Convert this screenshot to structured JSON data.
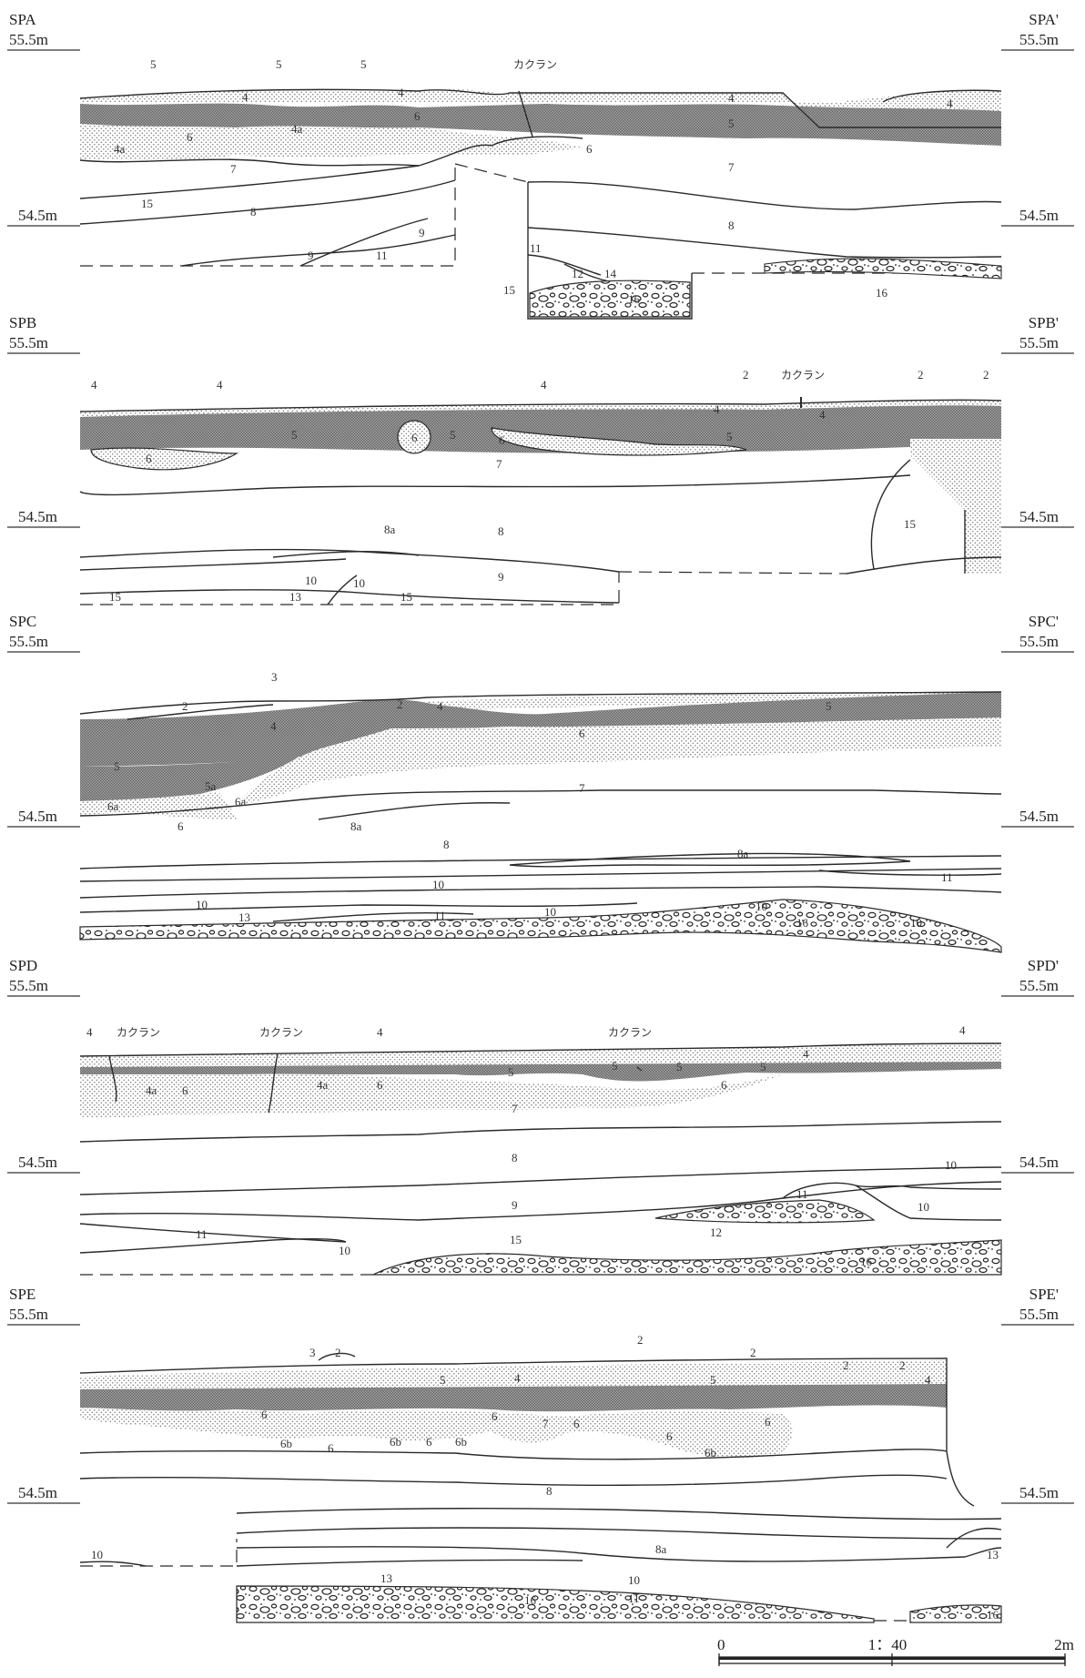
{
  "sections": [
    {
      "left_name": "SPA",
      "right_name": "SPA'",
      "top_elev": "55.5m",
      "bottom_elev": "54.5m",
      "labels": [
        "5",
        "5",
        "5",
        "4",
        "4",
        "4a",
        "4a",
        "6",
        "6",
        "5",
        "4",
        "4",
        "6",
        "7",
        "7",
        "15",
        "8",
        "8",
        "9",
        "9",
        "11",
        "11",
        "12",
        "14",
        "15",
        "16",
        "16"
      ],
      "kakuran": [
        "カクラン"
      ]
    },
    {
      "left_name": "SPB",
      "right_name": "SPB'",
      "top_elev": "55.5m",
      "bottom_elev": "54.5m",
      "labels": [
        "4",
        "4",
        "4",
        "2",
        "2",
        "2",
        "4",
        "4",
        "5",
        "6",
        "5",
        "6",
        "6",
        "5",
        "7",
        "15",
        "8a",
        "8",
        "9",
        "10",
        "10",
        "15",
        "13",
        "15"
      ],
      "kakuran": [
        "カクラン"
      ]
    },
    {
      "left_name": "SPC",
      "right_name": "SPC'",
      "top_elev": "55.5m",
      "bottom_elev": "54.5m",
      "labels": [
        "3",
        "2",
        "2",
        "4",
        "4",
        "5",
        "6",
        "5",
        "5a",
        "6a",
        "6a",
        "6",
        "7",
        "8a",
        "8",
        "8a",
        "11",
        "10",
        "10",
        "13",
        "11",
        "10",
        "10",
        "16",
        "10"
      ],
      "kakuran": []
    },
    {
      "left_name": "SPD",
      "right_name": "SPD'",
      "top_elev": "55.5m",
      "bottom_elev": "54.5m",
      "labels": [
        "4",
        "4",
        "4",
        "4a",
        "6",
        "4a",
        "6",
        "5",
        "5",
        "5",
        "5",
        "4",
        "6",
        "7",
        "8",
        "10",
        "11",
        "9",
        "10",
        "12",
        "11",
        "10",
        "15",
        "16"
      ],
      "kakuran": [
        "カクラン",
        "カクラン",
        "カクラン"
      ]
    },
    {
      "left_name": "SPE",
      "right_name": "SPE'",
      "top_elev": "55.5m",
      "bottom_elev": "54.5m",
      "labels": [
        "3",
        "2",
        "2",
        "2",
        "2",
        "2",
        "5",
        "4",
        "5",
        "4",
        "6",
        "6b",
        "6",
        "6b",
        "6",
        "6b",
        "6",
        "7",
        "6",
        "6",
        "6b",
        "6",
        "8",
        "10",
        "8a",
        "13",
        "10",
        "13",
        "11",
        "16",
        "16"
      ],
      "kakuran": []
    }
  ],
  "scale": {
    "zero": "0",
    "ratio": "1：40",
    "max": "2m"
  },
  "colors": {
    "stipple": "#8a8a8a",
    "dark_band": "#6f6f6f",
    "line": "#2a2a2a"
  }
}
